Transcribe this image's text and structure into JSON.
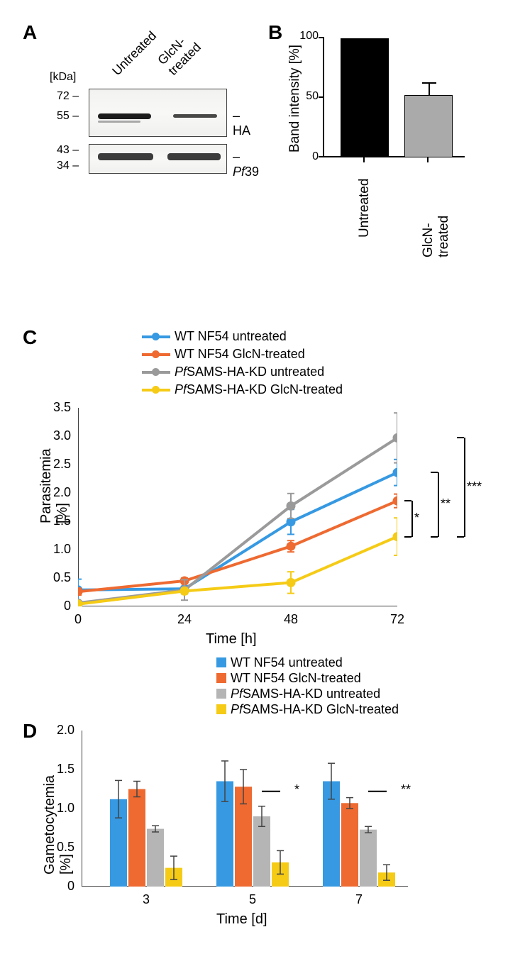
{
  "panels": {
    "A": "A",
    "B": "B",
    "C": "C",
    "D": "D"
  },
  "panelA": {
    "kda_header": "[kDa]",
    "col_labels": [
      "Untreated",
      "GlcN-treated"
    ],
    "upper": {
      "markers": [
        "72 –",
        "55 –"
      ],
      "side": "– HA"
    },
    "lower": {
      "markers": [
        "43 –",
        "34 –"
      ],
      "side": "– Pf39",
      "side_italic_start": 2
    }
  },
  "panelB": {
    "type": "bar",
    "ylabel": "Band intensity [%]",
    "yticks": [
      0,
      50,
      100
    ],
    "categories": [
      "Untreated",
      "GlcN-treated"
    ],
    "values": [
      100,
      52
    ],
    "errors": [
      0,
      11
    ],
    "bar_colors": [
      "#000000",
      "#aaaaaa"
    ],
    "background": "#ffffff"
  },
  "panelC": {
    "type": "line",
    "xlabel": "Time [h]",
    "ylabel": "Parasitemia [%]",
    "xticks": [
      0,
      24,
      48,
      72
    ],
    "yticks": [
      0,
      0.5,
      1.0,
      1.5,
      2.0,
      2.5,
      3.0,
      3.5
    ],
    "xlim": [
      0,
      72
    ],
    "ylim": [
      0,
      3.5
    ],
    "series": [
      {
        "name": "WT NF54 untreated",
        "name_ital": false,
        "color": "#3699e2",
        "x": [
          0,
          24,
          48,
          72
        ],
        "y": [
          0.29,
          0.31,
          1.49,
          2.36
        ],
        "err": [
          0.19,
          0.09,
          0.22,
          0.23
        ]
      },
      {
        "name": "WT NF54 GlcN-treated",
        "name_ital": false,
        "color": "#ee6a31",
        "x": [
          0,
          24,
          48,
          72
        ],
        "y": [
          0.26,
          0.45,
          1.06,
          1.86
        ],
        "err": [
          0.06,
          0.05,
          0.1,
          0.12
        ]
      },
      {
        "name": "PfSAMS-HA-KD untreated",
        "name_ital": true,
        "color": "#9a9a9a",
        "x": [
          0,
          24,
          48,
          72
        ],
        "y": [
          0.06,
          0.29,
          1.77,
          2.97
        ],
        "err": [
          0.04,
          0.18,
          0.22,
          0.44
        ]
      },
      {
        "name": "PfSAMS-HA-KD GlcN-treated",
        "name_ital": true,
        "color": "#f5cb16",
        "x": [
          0,
          24,
          48,
          72
        ],
        "y": [
          0.04,
          0.27,
          0.42,
          1.23
        ],
        "err": [
          0.02,
          0.05,
          0.19,
          0.33
        ]
      }
    ],
    "line_width": 4,
    "marker_r": 6,
    "sig": [
      "*",
      "**",
      "***"
    ]
  },
  "panelD": {
    "type": "bar",
    "xlabel": "Time [d]",
    "ylabel": "Gametocytemia [%]",
    "xticks": [
      3,
      5,
      7
    ],
    "yticks": [
      0,
      0.5,
      1.0,
      1.5,
      2.0
    ],
    "ylim": [
      0,
      2.0
    ],
    "series": [
      {
        "name": "WT NF54 untreated",
        "name_ital": false,
        "color": "#3699e2"
      },
      {
        "name": "WT NF54 GlcN-treated",
        "name_ital": false,
        "color": "#ee6a31"
      },
      {
        "name": "PfSAMS-HA-KD untreated",
        "name_ital": true,
        "color": "#b5b5b5"
      },
      {
        "name": "PfSAMS-HA-KD GlcN-treated",
        "name_ital": true,
        "color": "#f5cb16"
      }
    ],
    "data": {
      "3": {
        "values": [
          1.12,
          1.25,
          0.74,
          0.24
        ],
        "err": [
          0.24,
          0.1,
          0.04,
          0.15
        ]
      },
      "5": {
        "values": [
          1.35,
          1.28,
          0.9,
          0.31
        ],
        "err": [
          0.26,
          0.22,
          0.13,
          0.15
        ],
        "sig": "*"
      },
      "7": {
        "values": [
          1.35,
          1.07,
          0.73,
          0.18
        ],
        "err": [
          0.23,
          0.07,
          0.04,
          0.1
        ],
        "sig": "**"
      }
    },
    "bar_width": 0.7,
    "error_color": "#444444"
  }
}
